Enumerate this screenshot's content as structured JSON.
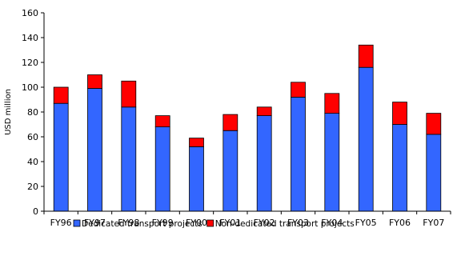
{
  "chart_data": {
    "type": "bar",
    "stacked": true,
    "title": "",
    "xlabel": "",
    "ylabel": "USD million",
    "ylim": [
      0,
      160
    ],
    "yticks": [
      0,
      20,
      40,
      60,
      80,
      100,
      120,
      140,
      160
    ],
    "grid": false,
    "legend_position": "bottom",
    "categories": [
      "FY96",
      "FY97",
      "FY98",
      "FY99",
      "FY00",
      "FY01",
      "FY02",
      "FY03",
      "FY04",
      "FY05",
      "FY06",
      "FY07"
    ],
    "series": [
      {
        "name": "Dedicated transport projects",
        "color": "#3366ff",
        "values": [
          87,
          99,
          84,
          68,
          52,
          65,
          77,
          92,
          79,
          116,
          70,
          62
        ]
      },
      {
        "name": "Non-dedicated transport projects",
        "color": "#ff0000",
        "values": [
          13,
          11,
          21,
          9,
          7,
          13,
          7,
          12,
          16,
          18,
          18,
          17
        ]
      }
    ]
  }
}
